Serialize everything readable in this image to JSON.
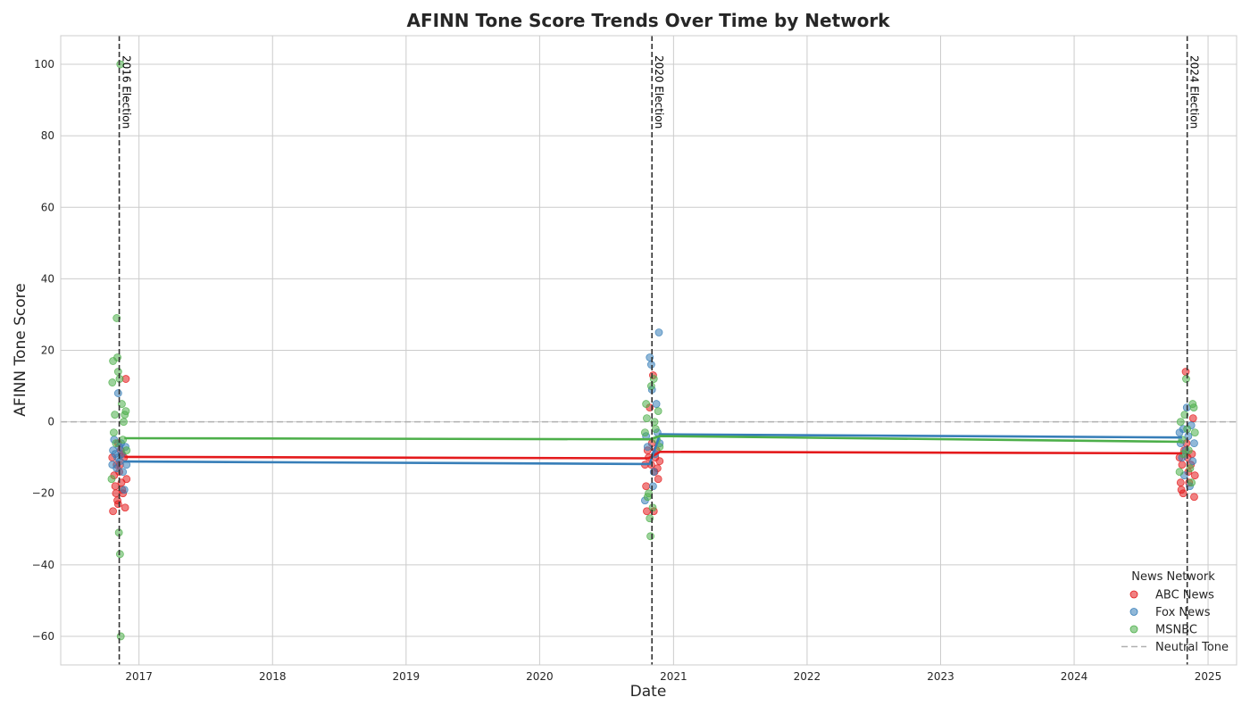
{
  "chart_data": {
    "type": "scatter",
    "title": "AFINN Tone Score Trends Over Time by Network",
    "xlabel": "Date",
    "ylabel": "AFINN Tone Score",
    "xlim": [
      "2016-06-01",
      "2025-03-20"
    ],
    "ylim": [
      -68,
      108
    ],
    "x_ticks": [
      "2017",
      "2018",
      "2019",
      "2020",
      "2021",
      "2022",
      "2023",
      "2024",
      "2025"
    ],
    "y_ticks": [
      -60,
      -40,
      -20,
      0,
      20,
      40,
      60,
      80,
      100
    ],
    "grid": true,
    "legend": {
      "title": "News Network",
      "placement": "lower-right"
    },
    "colors": {
      "ABC News": "#e41a1c",
      "Fox News": "#377eb8",
      "MSNBC": "#4daf4a",
      "neutral": "#b0b0b0",
      "election": "#333333"
    },
    "reference_lines": [
      {
        "type": "horizontal",
        "y": 0,
        "label": "Neutral Tone"
      },
      {
        "type": "vertical",
        "x": "2016-11-08",
        "label": "2016 Election"
      },
      {
        "type": "vertical",
        "x": "2020-11-03",
        "label": "2020 Election"
      },
      {
        "type": "vertical",
        "x": "2024-11-05",
        "label": "2024 Election"
      }
    ],
    "series": [
      {
        "name": "ABC News",
        "points": [
          [
            "2016-10-20",
            -10
          ],
          [
            "2016-10-22",
            -25
          ],
          [
            "2016-10-25",
            -15
          ],
          [
            "2016-10-28",
            -18
          ],
          [
            "2016-10-30",
            -20
          ],
          [
            "2016-11-01",
            -12
          ],
          [
            "2016-11-03",
            -22
          ],
          [
            "2016-11-05",
            -23
          ],
          [
            "2016-11-08",
            -14
          ],
          [
            "2016-11-10",
            -12
          ],
          [
            "2016-11-12",
            -8
          ],
          [
            "2016-11-14",
            -17
          ],
          [
            "2016-11-16",
            -19
          ],
          [
            "2016-11-18",
            -20
          ],
          [
            "2016-11-21",
            -10
          ],
          [
            "2016-11-24",
            -24
          ],
          [
            "2016-11-26",
            12
          ],
          [
            "2016-11-28",
            -16
          ],
          [
            "2016-11-05",
            -6
          ],
          [
            "2016-11-15",
            -9
          ],
          [
            "2020-10-15",
            -12
          ],
          [
            "2020-10-18",
            -18
          ],
          [
            "2020-10-20",
            -25
          ],
          [
            "2020-10-22",
            -8
          ],
          [
            "2020-10-25",
            -10
          ],
          [
            "2020-10-28",
            4
          ],
          [
            "2020-11-01",
            -12
          ],
          [
            "2020-11-03",
            -6
          ],
          [
            "2020-11-06",
            13
          ],
          [
            "2020-11-08",
            -25
          ],
          [
            "2020-11-10",
            -14
          ],
          [
            "2020-11-12",
            -10
          ],
          [
            "2020-11-15",
            -8
          ],
          [
            "2020-11-18",
            -13
          ],
          [
            "2020-11-20",
            -16
          ],
          [
            "2020-11-24",
            -11
          ],
          [
            "2024-10-15",
            -10
          ],
          [
            "2024-10-18",
            -17
          ],
          [
            "2024-10-20",
            -19
          ],
          [
            "2024-10-22",
            -12
          ],
          [
            "2024-10-25",
            -20
          ],
          [
            "2024-10-28",
            -8
          ],
          [
            "2024-11-01",
            14
          ],
          [
            "2024-11-03",
            -6
          ],
          [
            "2024-11-06",
            -10
          ],
          [
            "2024-11-08",
            -14
          ],
          [
            "2024-11-10",
            -17
          ],
          [
            "2024-11-15",
            -12
          ],
          [
            "2024-11-18",
            -9
          ],
          [
            "2024-11-21",
            1
          ],
          [
            "2024-11-24",
            -21
          ],
          [
            "2024-11-26",
            -15
          ]
        ],
        "trend": [
          [
            "2016-11-22",
            -9.8
          ],
          [
            "2020-10-25",
            -10.2
          ],
          [
            "2020-11-25",
            -8.4
          ],
          [
            "2024-10-22",
            -8.8
          ]
        ]
      },
      {
        "name": "Fox News",
        "points": [
          [
            "2016-10-20",
            -12
          ],
          [
            "2016-10-22",
            -8
          ],
          [
            "2016-10-25",
            -5
          ],
          [
            "2016-10-28",
            -9
          ],
          [
            "2016-11-01",
            -13
          ],
          [
            "2016-11-03",
            -10
          ],
          [
            "2016-11-05",
            8
          ],
          [
            "2016-11-08",
            -7
          ],
          [
            "2016-11-10",
            -11
          ],
          [
            "2016-11-13",
            -6
          ],
          [
            "2016-11-15",
            -9
          ],
          [
            "2016-11-18",
            -14
          ],
          [
            "2016-11-22",
            -19
          ],
          [
            "2016-11-25",
            -7
          ],
          [
            "2016-11-28",
            -12
          ],
          [
            "2020-10-15",
            -22
          ],
          [
            "2020-10-18",
            -4
          ],
          [
            "2020-10-22",
            -7
          ],
          [
            "2020-10-28",
            18
          ],
          [
            "2020-11-01",
            16
          ],
          [
            "2020-11-03",
            9
          ],
          [
            "2020-11-06",
            -18
          ],
          [
            "2020-11-08",
            -14
          ],
          [
            "2020-11-12",
            -9
          ],
          [
            "2020-11-15",
            5
          ],
          [
            "2020-11-18",
            -3
          ],
          [
            "2020-11-22",
            25
          ],
          [
            "2020-11-24",
            -6
          ],
          [
            "2024-10-15",
            -3
          ],
          [
            "2024-10-18",
            -6
          ],
          [
            "2024-10-22",
            -10
          ],
          [
            "2024-10-25",
            -2
          ],
          [
            "2024-10-28",
            -15
          ],
          [
            "2024-11-01",
            -8
          ],
          [
            "2024-11-04",
            4
          ],
          [
            "2024-11-08",
            -4
          ],
          [
            "2024-11-12",
            -18
          ],
          [
            "2024-11-16",
            -1
          ],
          [
            "2024-11-20",
            -11
          ],
          [
            "2024-11-24",
            -6
          ]
        ],
        "trend": [
          [
            "2016-11-20",
            -11.1
          ],
          [
            "2020-10-28",
            -11.8
          ],
          [
            "2020-11-25",
            -3.5
          ],
          [
            "2024-10-22",
            -4.4
          ]
        ]
      },
      {
        "name": "MSNBC",
        "points": [
          [
            "2016-10-18",
            -16
          ],
          [
            "2016-10-20",
            11
          ],
          [
            "2016-10-22",
            17
          ],
          [
            "2016-10-24",
            -3
          ],
          [
            "2016-10-27",
            2
          ],
          [
            "2016-10-30",
            -6
          ],
          [
            "2016-11-01",
            29
          ],
          [
            "2016-11-03",
            18
          ],
          [
            "2016-11-05",
            14
          ],
          [
            "2016-11-07",
            -31
          ],
          [
            "2016-11-09",
            12
          ],
          [
            "2016-11-10",
            -37
          ],
          [
            "2016-11-11",
            100
          ],
          [
            "2016-11-12",
            -60
          ],
          [
            "2016-11-15",
            5
          ],
          [
            "2016-11-18",
            -5
          ],
          [
            "2016-11-20",
            0
          ],
          [
            "2016-11-23",
            2
          ],
          [
            "2016-11-26",
            3
          ],
          [
            "2016-11-28",
            -8
          ],
          [
            "2020-10-15",
            -3
          ],
          [
            "2020-10-18",
            5
          ],
          [
            "2020-10-20",
            1
          ],
          [
            "2020-10-22",
            -21
          ],
          [
            "2020-10-25",
            -20
          ],
          [
            "2020-10-28",
            -27
          ],
          [
            "2020-10-30",
            -32
          ],
          [
            "2020-11-01",
            10
          ],
          [
            "2020-11-05",
            -24
          ],
          [
            "2020-11-08",
            12
          ],
          [
            "2020-11-10",
            0
          ],
          [
            "2020-11-13",
            -2
          ],
          [
            "2020-11-16",
            -5
          ],
          [
            "2020-11-20",
            3
          ],
          [
            "2020-11-24",
            -7
          ],
          [
            "2024-10-15",
            -14
          ],
          [
            "2024-10-18",
            0
          ],
          [
            "2024-10-22",
            -5
          ],
          [
            "2024-10-25",
            -9
          ],
          [
            "2024-10-29",
            2
          ],
          [
            "2024-11-02",
            12
          ],
          [
            "2024-11-05",
            -2
          ],
          [
            "2024-11-09",
            -8
          ],
          [
            "2024-11-13",
            -13
          ],
          [
            "2024-11-17",
            -17
          ],
          [
            "2024-11-20",
            5
          ],
          [
            "2024-11-23",
            4
          ],
          [
            "2024-11-26",
            -3
          ]
        ],
        "trend": [
          [
            "2016-11-22",
            -4.6
          ],
          [
            "2020-10-28",
            -4.9
          ],
          [
            "2020-11-25",
            -4.0
          ],
          [
            "2024-10-22",
            -5.6
          ]
        ]
      }
    ]
  }
}
